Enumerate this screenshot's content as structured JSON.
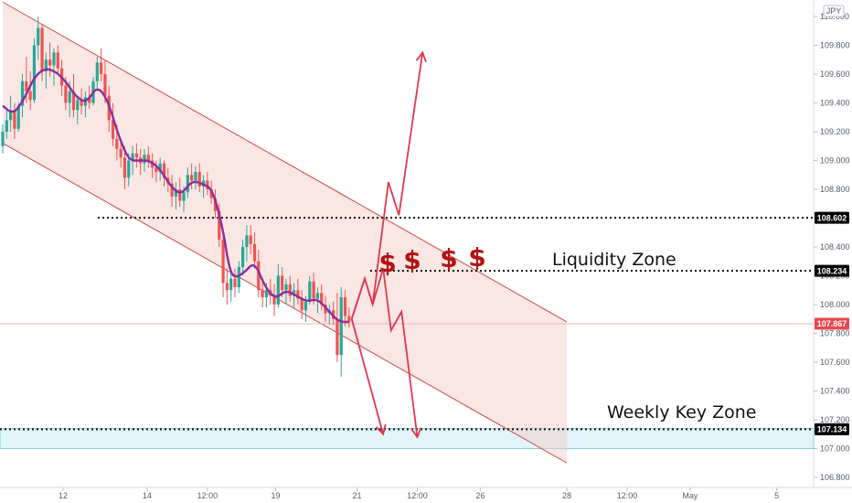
{
  "currency": "JPY",
  "chart_data": {
    "type": "candlestick",
    "ylim": [
      106.83,
      110.08
    ],
    "y_ticks": [
      "110.000",
      "109.800",
      "109.600",
      "109.400",
      "109.200",
      "109.000",
      "108.800",
      "108.600",
      "108.400",
      "108.200",
      "108.000",
      "107.800",
      "107.600",
      "107.400",
      "107.200",
      "107.000",
      "106.800"
    ],
    "y_tick_values": [
      110.0,
      109.8,
      109.6,
      109.4,
      109.2,
      109.0,
      108.8,
      108.6,
      108.4,
      108.2,
      108.0,
      107.8,
      107.6,
      107.4,
      107.2,
      107.0,
      106.8
    ],
    "x_ticks": [
      "12",
      "14",
      "12:00",
      "19",
      "21",
      "12:00",
      "26",
      "28",
      "12:00",
      "May",
      "5"
    ],
    "x_tick_values": [
      23,
      55,
      78,
      104,
      135,
      158,
      182,
      215,
      238,
      262,
      295
    ],
    "price_tags": [
      {
        "value": 108.602,
        "label": "108.602",
        "color": "#000000"
      },
      {
        "value": 108.234,
        "label": "108.234",
        "color": "#000000"
      },
      {
        "value": 107.867,
        "label": "107.867",
        "color": "#e5494f"
      },
      {
        "value": 107.134,
        "label": "107.134",
        "color": "#000000"
      }
    ],
    "channel": {
      "upper": [
        [
          0,
          110.1
        ],
        [
          215,
          107.88
        ]
      ],
      "lower": [
        [
          0,
          109.12
        ],
        [
          215,
          106.9
        ]
      ],
      "fill_to_x": 215
    },
    "weekly_zone": [
      107.0,
      107.14
    ],
    "annotations": [
      "Liquidity Zone",
      "Weekly Key Zone"
    ],
    "dollar_marks": [
      "$",
      "$",
      "$",
      "$"
    ],
    "candles": [
      [
        0,
        109.1,
        109.25,
        109.05,
        109.2
      ],
      [
        1.5,
        109.2,
        109.35,
        109.15,
        109.28
      ],
      [
        3,
        109.28,
        109.45,
        109.2,
        109.35
      ],
      [
        4.5,
        109.35,
        109.4,
        109.15,
        109.22
      ],
      [
        6,
        109.22,
        109.4,
        109.2,
        109.38
      ],
      [
        7.5,
        109.38,
        109.6,
        109.3,
        109.55
      ],
      [
        9,
        109.55,
        109.72,
        109.4,
        109.48
      ],
      [
        10.5,
        109.48,
        109.62,
        109.35,
        109.42
      ],
      [
        12,
        109.42,
        109.85,
        109.4,
        109.8
      ],
      [
        13.5,
        109.8,
        110.0,
        109.7,
        109.92
      ],
      [
        15,
        109.92,
        109.95,
        109.55,
        109.62
      ],
      [
        16.5,
        109.62,
        109.75,
        109.5,
        109.7
      ],
      [
        18,
        109.7,
        109.82,
        109.58,
        109.66
      ],
      [
        19.5,
        109.66,
        109.78,
        109.52,
        109.75
      ],
      [
        21,
        109.75,
        109.8,
        109.6,
        109.64
      ],
      [
        22.5,
        109.64,
        109.7,
        109.45,
        109.52
      ],
      [
        24,
        109.52,
        109.58,
        109.35,
        109.4
      ],
      [
        25.5,
        109.4,
        109.55,
        109.3,
        109.48
      ],
      [
        27,
        109.48,
        109.6,
        109.3,
        109.35
      ],
      [
        28.5,
        109.35,
        109.45,
        109.25,
        109.42
      ],
      [
        30,
        109.42,
        109.5,
        109.32,
        109.38
      ],
      [
        31.5,
        109.38,
        109.48,
        109.3,
        109.44
      ],
      [
        33,
        109.44,
        109.52,
        109.36,
        109.4
      ],
      [
        34.5,
        109.4,
        109.58,
        109.38,
        109.55
      ],
      [
        36,
        109.55,
        109.72,
        109.5,
        109.68
      ],
      [
        37.5,
        109.68,
        109.78,
        109.55,
        109.6
      ],
      [
        39,
        109.6,
        109.7,
        109.4,
        109.45
      ],
      [
        40.5,
        109.45,
        109.52,
        109.2,
        109.28
      ],
      [
        42,
        109.28,
        109.4,
        109.1,
        109.15
      ],
      [
        43.5,
        109.15,
        109.25,
        109.0,
        109.08
      ],
      [
        45,
        109.08,
        109.15,
        108.95,
        109.02
      ],
      [
        46.5,
        109.02,
        109.1,
        108.8,
        108.88
      ],
      [
        48,
        108.88,
        109.05,
        108.82,
        109.0
      ],
      [
        49.5,
        109.0,
        109.1,
        108.9,
        109.05
      ],
      [
        51,
        109.05,
        109.12,
        108.95,
        109.02
      ],
      [
        52.5,
        109.02,
        109.08,
        108.9,
        108.98
      ],
      [
        54,
        108.98,
        109.08,
        108.92,
        109.04
      ],
      [
        55.5,
        109.04,
        109.1,
        108.95,
        109.0
      ],
      [
        57,
        109.0,
        109.05,
        108.88,
        108.95
      ],
      [
        58.5,
        108.95,
        109.0,
        108.85,
        108.92
      ],
      [
        60,
        108.92,
        109.02,
        108.86,
        108.98
      ],
      [
        61.5,
        108.98,
        109.0,
        108.82,
        108.88
      ],
      [
        63,
        108.88,
        108.95,
        108.78,
        108.84
      ],
      [
        64.5,
        108.84,
        108.9,
        108.68,
        108.75
      ],
      [
        66,
        108.75,
        108.85,
        108.66,
        108.8
      ],
      [
        67.5,
        108.8,
        108.88,
        108.68,
        108.72
      ],
      [
        69,
        108.72,
        108.82,
        108.64,
        108.78
      ],
      [
        70.5,
        108.78,
        108.95,
        108.74,
        108.9
      ],
      [
        72,
        108.9,
        108.98,
        108.8,
        108.86
      ],
      [
        73.5,
        108.86,
        108.96,
        108.8,
        108.92
      ],
      [
        75,
        108.92,
        108.98,
        108.78,
        108.82
      ],
      [
        76.5,
        108.82,
        108.9,
        108.74,
        108.86
      ],
      [
        78,
        108.86,
        108.92,
        108.76,
        108.8
      ],
      [
        79.5,
        108.8,
        108.86,
        108.7,
        108.74
      ],
      [
        81,
        108.74,
        108.8,
        108.6,
        108.65
      ],
      [
        82.5,
        108.65,
        108.7,
        108.4,
        108.45
      ],
      [
        84,
        108.45,
        108.5,
        108.05,
        108.15
      ],
      [
        85.5,
        108.15,
        108.25,
        108.0,
        108.1
      ],
      [
        87,
        108.1,
        108.22,
        108.02,
        108.18
      ],
      [
        88.5,
        108.18,
        108.25,
        108.05,
        108.12
      ],
      [
        90,
        108.12,
        108.3,
        108.08,
        108.26
      ],
      [
        91.5,
        108.26,
        108.45,
        108.2,
        108.4
      ],
      [
        93,
        108.4,
        108.55,
        108.3,
        108.48
      ],
      [
        94.5,
        108.48,
        108.55,
        108.35,
        108.42
      ],
      [
        96,
        108.42,
        108.5,
        108.25,
        108.3
      ],
      [
        97.5,
        108.3,
        108.38,
        108.05,
        108.1
      ],
      [
        99,
        108.1,
        108.18,
        107.98,
        108.05
      ],
      [
        100.5,
        108.05,
        108.15,
        107.98,
        108.1
      ],
      [
        102,
        108.1,
        108.18,
        108.0,
        108.06
      ],
      [
        103.5,
        108.06,
        108.14,
        107.92,
        108.0
      ],
      [
        105,
        108.0,
        108.28,
        107.98,
        108.2
      ],
      [
        106.5,
        108.2,
        108.26,
        108.05,
        108.1
      ],
      [
        108,
        108.1,
        108.18,
        108.0,
        108.14
      ],
      [
        109.5,
        108.14,
        108.2,
        108.02,
        108.06
      ],
      [
        111,
        108.06,
        108.15,
        107.98,
        108.1
      ],
      [
        112.5,
        108.1,
        108.18,
        108.0,
        108.04
      ],
      [
        114,
        108.04,
        108.1,
        107.9,
        107.96
      ],
      [
        115.5,
        107.96,
        108.06,
        107.88,
        108.02
      ],
      [
        117,
        108.02,
        108.2,
        108.0,
        108.16
      ],
      [
        118.5,
        108.16,
        108.22,
        108.0,
        108.04
      ],
      [
        120,
        108.04,
        108.12,
        107.94,
        108.08
      ],
      [
        121.5,
        108.08,
        108.14,
        107.96,
        108.0
      ],
      [
        123,
        108.0,
        108.06,
        107.88,
        107.94
      ],
      [
        124.5,
        107.94,
        108.0,
        107.86,
        107.96
      ],
      [
        126,
        107.96,
        108.02,
        107.86,
        107.9
      ],
      [
        127.5,
        107.9,
        108.08,
        107.6,
        107.65
      ],
      [
        129,
        107.65,
        108.12,
        107.5,
        108.05
      ],
      [
        130.5,
        108.05,
        108.1,
        107.85,
        107.92
      ],
      [
        132,
        107.92,
        107.98,
        107.84,
        107.88
      ]
    ],
    "ma_points": [
      [
        0,
        109.38
      ],
      [
        4,
        109.32
      ],
      [
        8,
        109.42
      ],
      [
        12,
        109.58
      ],
      [
        16,
        109.64
      ],
      [
        20,
        109.62
      ],
      [
        24,
        109.55
      ],
      [
        28,
        109.44
      ],
      [
        32,
        109.4
      ],
      [
        36,
        109.52
      ],
      [
        40,
        109.42
      ],
      [
        44,
        109.18
      ],
      [
        48,
        109.0
      ],
      [
        52,
        109.0
      ],
      [
        56,
        109.0
      ],
      [
        60,
        108.94
      ],
      [
        64,
        108.82
      ],
      [
        68,
        108.76
      ],
      [
        72,
        108.86
      ],
      [
        76,
        108.84
      ],
      [
        80,
        108.8
      ],
      [
        84,
        108.52
      ],
      [
        86,
        108.28
      ],
      [
        88,
        108.18
      ],
      [
        92,
        108.22
      ],
      [
        96,
        108.3
      ],
      [
        100,
        108.12
      ],
      [
        104,
        108.04
      ],
      [
        108,
        108.1
      ],
      [
        112,
        108.06
      ],
      [
        116,
        108.02
      ],
      [
        120,
        108.04
      ],
      [
        124,
        107.96
      ],
      [
        128,
        107.88
      ],
      [
        132,
        107.88
      ]
    ],
    "projection_up": [
      [
        133,
        107.9
      ],
      [
        138,
        108.18
      ],
      [
        141,
        108.0
      ],
      [
        147,
        108.85
      ],
      [
        151,
        108.62
      ],
      [
        160,
        109.75
      ]
    ],
    "projection_mid": [
      [
        133,
        107.9
      ],
      [
        138,
        108.18
      ],
      [
        141,
        108.0
      ],
      [
        145,
        108.25
      ],
      [
        148,
        107.82
      ],
      [
        152,
        107.95
      ],
      [
        158,
        107.08
      ]
    ],
    "projection_down": [
      [
        133,
        107.9
      ],
      [
        145,
        107.1
      ]
    ]
  }
}
